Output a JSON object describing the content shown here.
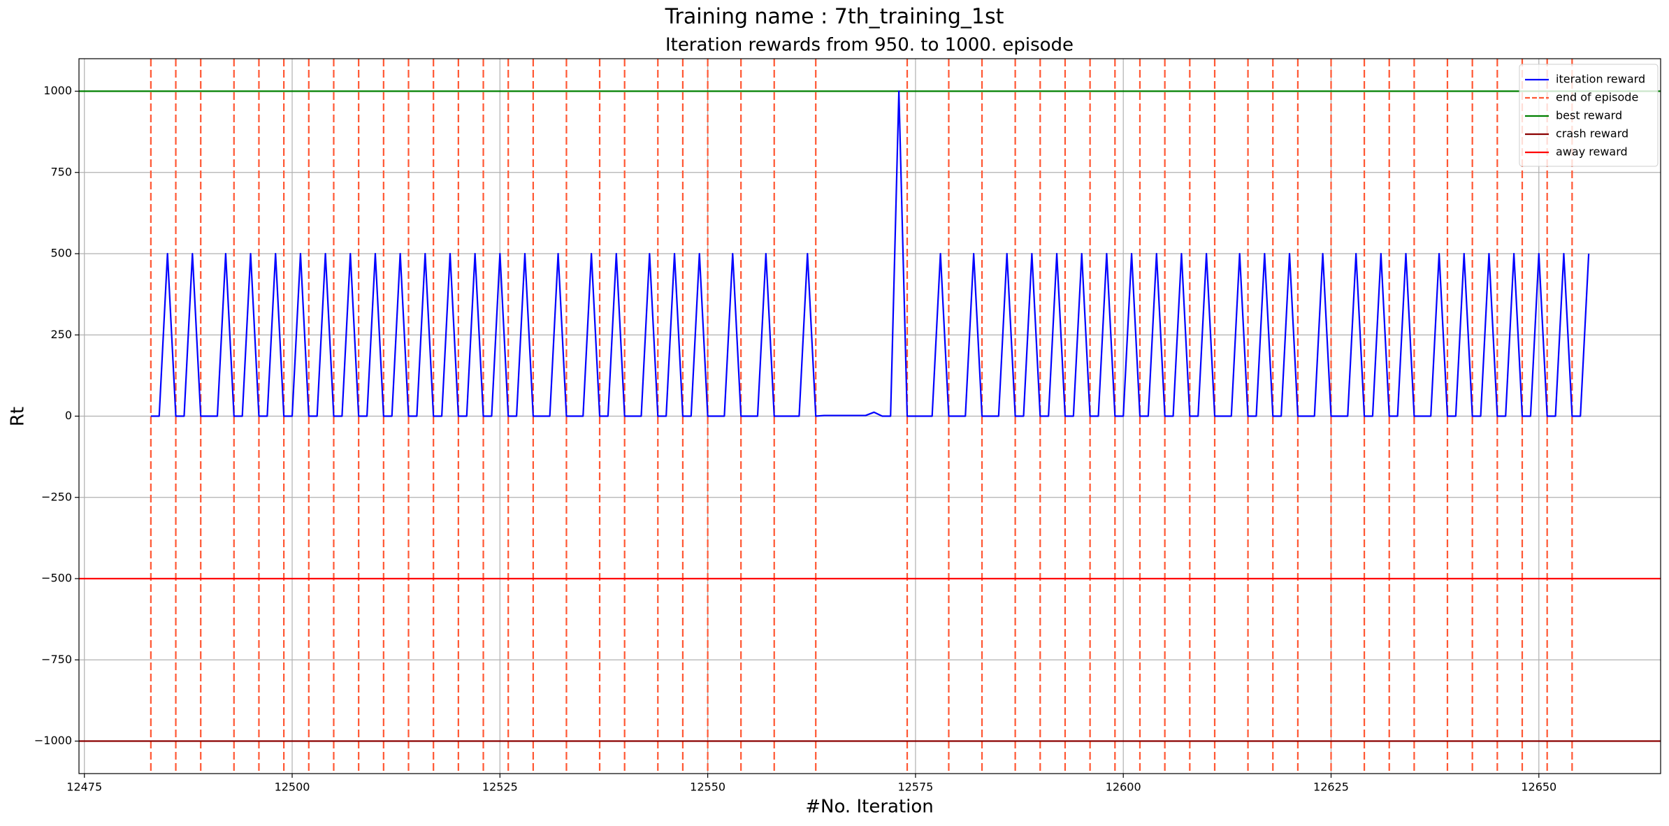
{
  "chart_data": {
    "type": "line",
    "title": "Training name : 7th_training_1st",
    "subtitle": "Iteration rewards from 950. to 1000. episode",
    "xlabel": "#No. Iteration",
    "ylabel": "Rt",
    "x": [
      12483,
      12484,
      12485,
      12486,
      12487,
      12488,
      12489,
      12490,
      12491,
      12492,
      12493,
      12494,
      12495,
      12496,
      12497,
      12498,
      12499,
      12500,
      12501,
      12502,
      12503,
      12504,
      12505,
      12506,
      12507,
      12508,
      12509,
      12510,
      12511,
      12512,
      12513,
      12514,
      12515,
      12516,
      12517,
      12518,
      12519,
      12520,
      12521,
      12522,
      12523,
      12524,
      12525,
      12526,
      12527,
      12528,
      12529,
      12530,
      12531,
      12532,
      12533,
      12534,
      12535,
      12536,
      12537,
      12538,
      12539,
      12540,
      12541,
      12542,
      12543,
      12544,
      12545,
      12546,
      12547,
      12548,
      12549,
      12550,
      12551,
      12552,
      12553,
      12554,
      12555,
      12556,
      12557,
      12558,
      12559,
      12560,
      12561,
      12562,
      12563,
      12564,
      12565,
      12566,
      12567,
      12568,
      12569,
      12570,
      12571,
      12572,
      12573,
      12574,
      12575,
      12576,
      12577,
      12578,
      12579,
      12580,
      12581,
      12582,
      12583,
      12584,
      12585,
      12586,
      12587,
      12588,
      12589,
      12590,
      12591,
      12592,
      12593,
      12594,
      12595,
      12596,
      12597,
      12598,
      12599,
      12600,
      12601,
      12602,
      12603,
      12604,
      12605,
      12606,
      12607,
      12608,
      12609,
      12610,
      12611,
      12612,
      12613,
      12614,
      12615,
      12616,
      12617,
      12618,
      12619,
      12620,
      12621,
      12622,
      12623,
      12624,
      12625,
      12626,
      12627,
      12628,
      12629,
      12630,
      12631,
      12632,
      12633,
      12634,
      12635,
      12636,
      12637,
      12638,
      12639,
      12640,
      12641,
      12642,
      12643,
      12644,
      12645,
      12646,
      12647,
      12648,
      12649,
      12650,
      12651,
      12652,
      12653,
      12654,
      12655,
      12656
    ],
    "series": [
      {
        "name": "iteration reward",
        "color": "#0000ff",
        "values": [
          0,
          0,
          500,
          0,
          0,
          500,
          0,
          0,
          0,
          500,
          0,
          0,
          500,
          0,
          0,
          500,
          0,
          0,
          500,
          0,
          0,
          500,
          0,
          0,
          500,
          0,
          0,
          500,
          0,
          0,
          500,
          0,
          0,
          500,
          0,
          0,
          500,
          0,
          0,
          500,
          0,
          0,
          500,
          0,
          0,
          500,
          0,
          0,
          0,
          500,
          0,
          0,
          0,
          500,
          0,
          0,
          500,
          0,
          0,
          0,
          500,
          0,
          0,
          500,
          0,
          0,
          500,
          0,
          0,
          0,
          500,
          0,
          0,
          0,
          500,
          0,
          0,
          0,
          0,
          500,
          0,
          2,
          2,
          2,
          2,
          2,
          2,
          12,
          0,
          0,
          1000,
          0,
          0,
          0,
          0,
          500,
          0,
          0,
          0,
          500,
          0,
          0,
          0,
          500,
          0,
          0,
          500,
          0,
          0,
          500,
          0,
          0,
          500,
          0,
          0,
          500,
          0,
          0,
          500,
          0,
          0,
          500,
          0,
          0,
          500,
          0,
          0,
          500,
          0,
          0,
          0,
          500,
          0,
          0,
          500,
          0,
          0,
          500,
          0,
          0,
          0,
          500,
          0,
          0,
          0,
          500,
          0,
          0,
          500,
          0,
          0,
          500,
          0,
          0,
          0,
          500,
          0,
          0,
          500,
          0,
          0,
          500,
          0,
          0,
          500,
          0,
          0,
          500,
          0,
          0,
          500,
          0,
          0,
          500
        ]
      }
    ],
    "episode_ends": {
      "name": "end of episode",
      "color": "#ff5733",
      "x": [
        12483,
        12486,
        12489,
        12493,
        12496,
        12499,
        12502,
        12505,
        12508,
        12511,
        12514,
        12517,
        12520,
        12523,
        12526,
        12529,
        12533,
        12537,
        12540,
        12544,
        12547,
        12550,
        12554,
        12558,
        12563,
        12574,
        12579,
        12583,
        12587,
        12590,
        12593,
        12596,
        12599,
        12602,
        12605,
        12608,
        12611,
        12615,
        12618,
        12621,
        12625,
        12629,
        12632,
        12635,
        12639,
        12642,
        12645,
        12648,
        12651,
        12654
      ]
    },
    "reference_lines": [
      {
        "name": "best reward",
        "color": "#008000",
        "value": 1000
      },
      {
        "name": "crash reward",
        "color": "#8b0000",
        "value": -1000
      },
      {
        "name": "away reward",
        "color": "#ff0000",
        "value": -500
      }
    ],
    "xlim": [
      12474.35,
      12664.65
    ],
    "ylim": [
      -1100,
      1100
    ],
    "xticks": [
      12475,
      12500,
      12525,
      12550,
      12575,
      12600,
      12625,
      12650
    ],
    "yticks": [
      {
        "value": -1000,
        "label": "−1000"
      },
      {
        "value": -750,
        "label": "−750"
      },
      {
        "value": -500,
        "label": "−500"
      },
      {
        "value": -250,
        "label": "−250"
      },
      0,
      250,
      500,
      750,
      1000
    ],
    "grid": true,
    "legend": "upper right"
  }
}
